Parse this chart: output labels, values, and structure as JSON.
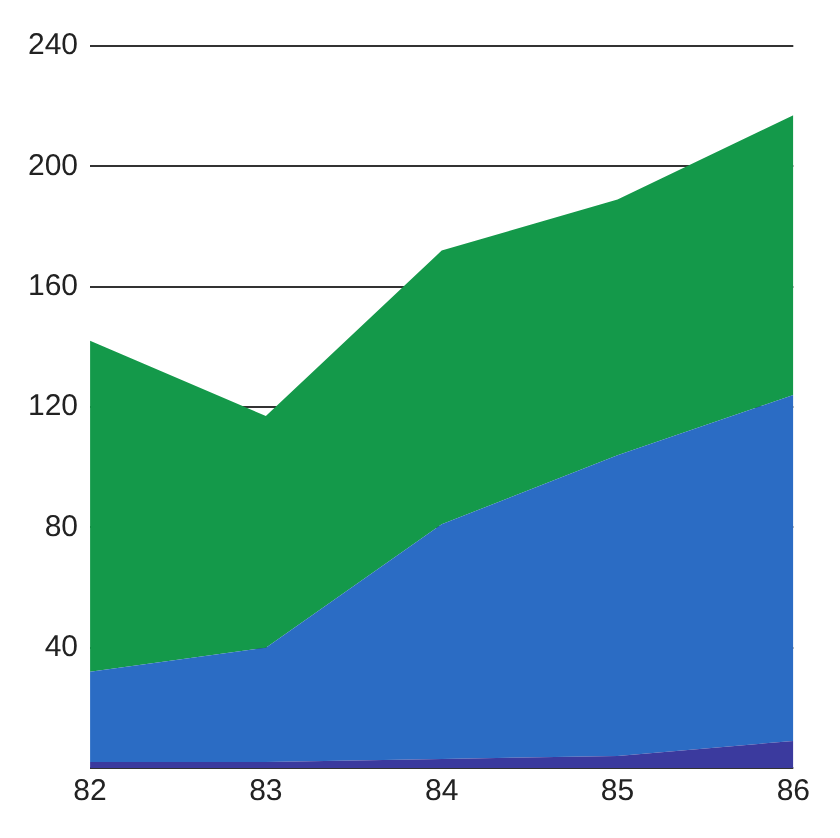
{
  "chart_data": {
    "type": "area",
    "stacked": true,
    "categories": [
      "82",
      "83",
      "84",
      "85",
      "86"
    ],
    "series": [
      {
        "color": "#3b3a9e",
        "values": [
          2,
          2,
          3,
          4,
          9
        ]
      },
      {
        "color": "#2b6cc4",
        "values": [
          30,
          38,
          78,
          100,
          115
        ]
      },
      {
        "color": "#14994a",
        "values": [
          110,
          77,
          91,
          85,
          93
        ]
      }
    ],
    "ylim": [
      0,
      240
    ],
    "yticks": [
      {
        "value": 0,
        "label": null
      },
      40,
      80,
      120,
      160,
      200,
      240
    ],
    "grid": "y",
    "legend": false,
    "marker": "none"
  }
}
